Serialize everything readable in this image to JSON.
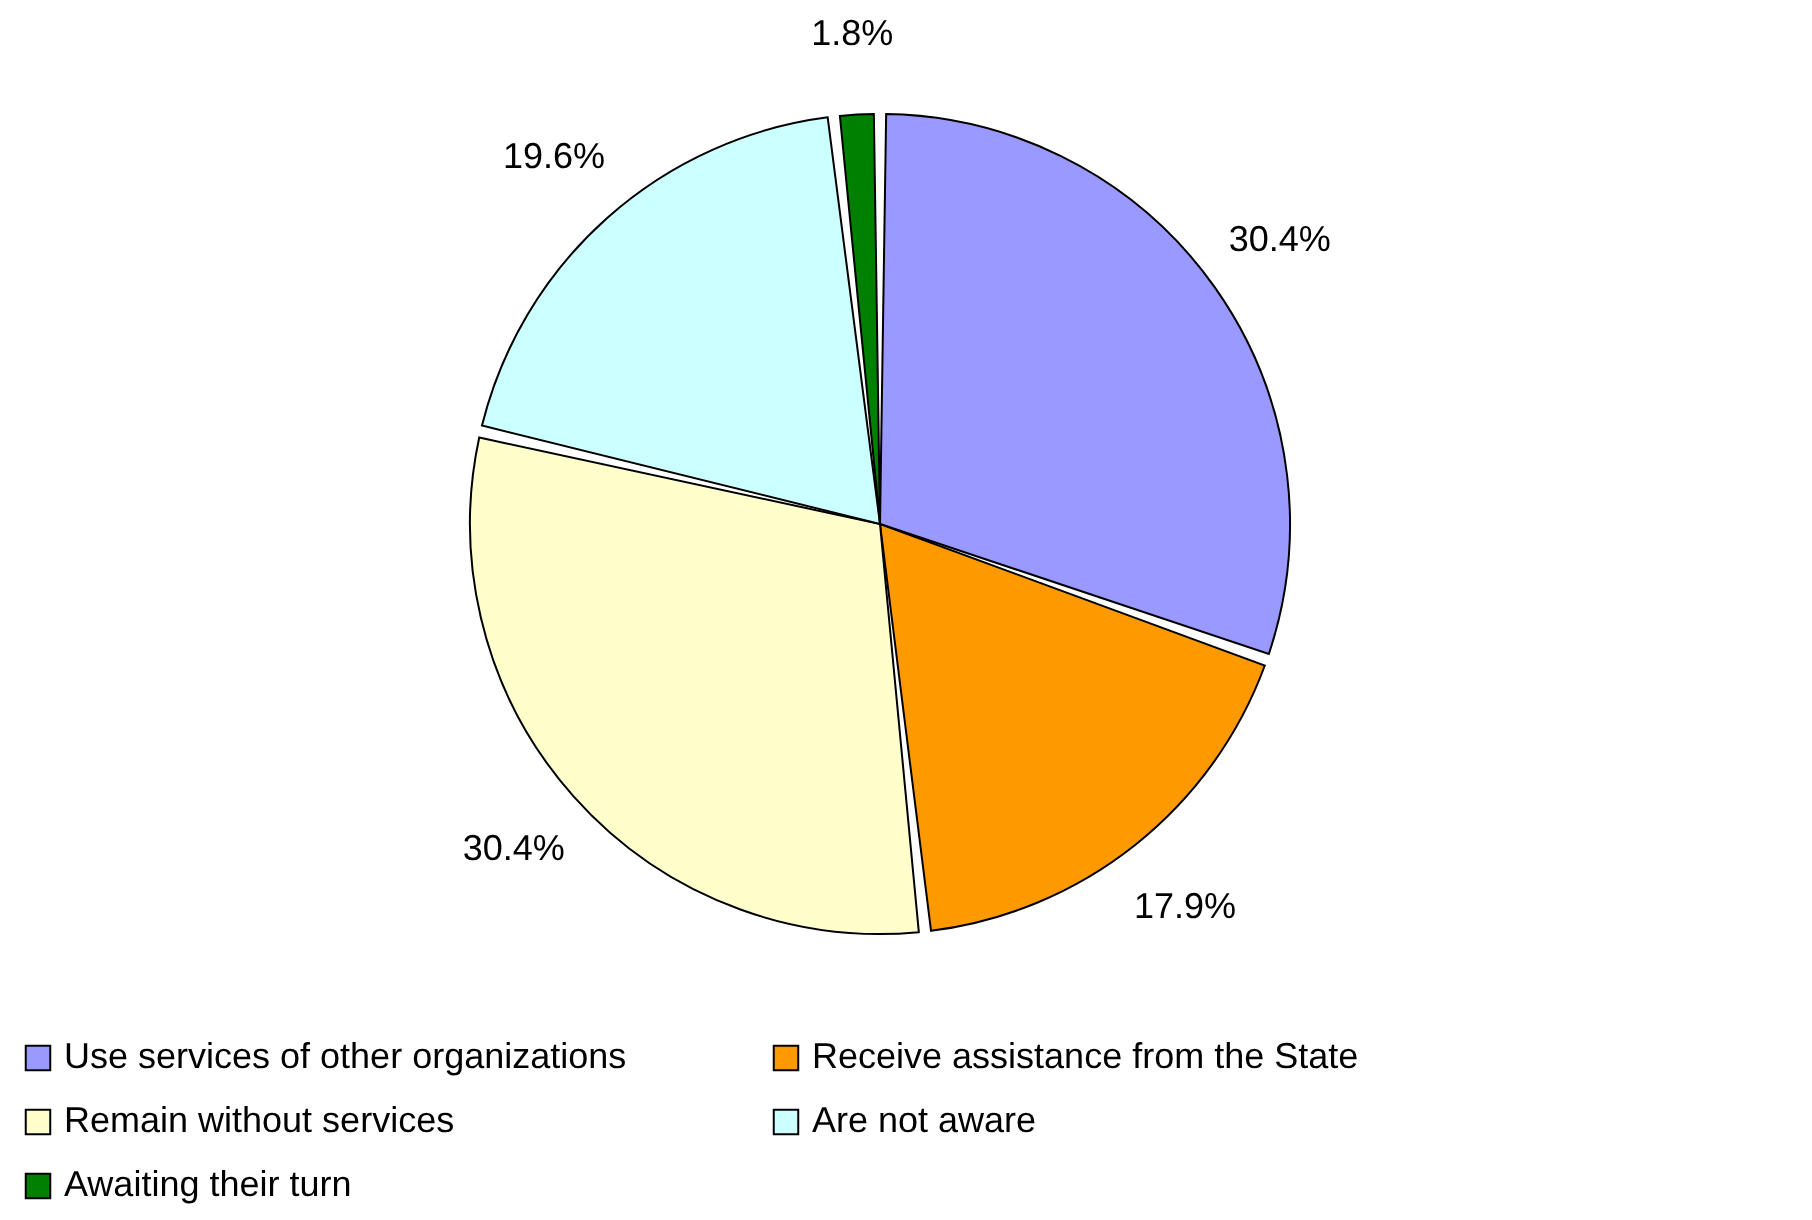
{
  "chart_data": {
    "type": "pie",
    "categories": [
      "Use services of other organizations",
      "Receive assistance from the State",
      "Remain without services",
      "Are not aware",
      "Awaiting their turn"
    ],
    "values": [
      30.4,
      17.9,
      30.4,
      19.6,
      1.8
    ],
    "colors": [
      "#9999ff",
      "#ff9900",
      "#ffffcc",
      "#ccffff",
      "#008000"
    ],
    "value_labels": [
      "30.4%",
      "17.9%",
      "30.4%",
      "19.6%",
      "1.8%"
    ],
    "legend": "bottom"
  }
}
